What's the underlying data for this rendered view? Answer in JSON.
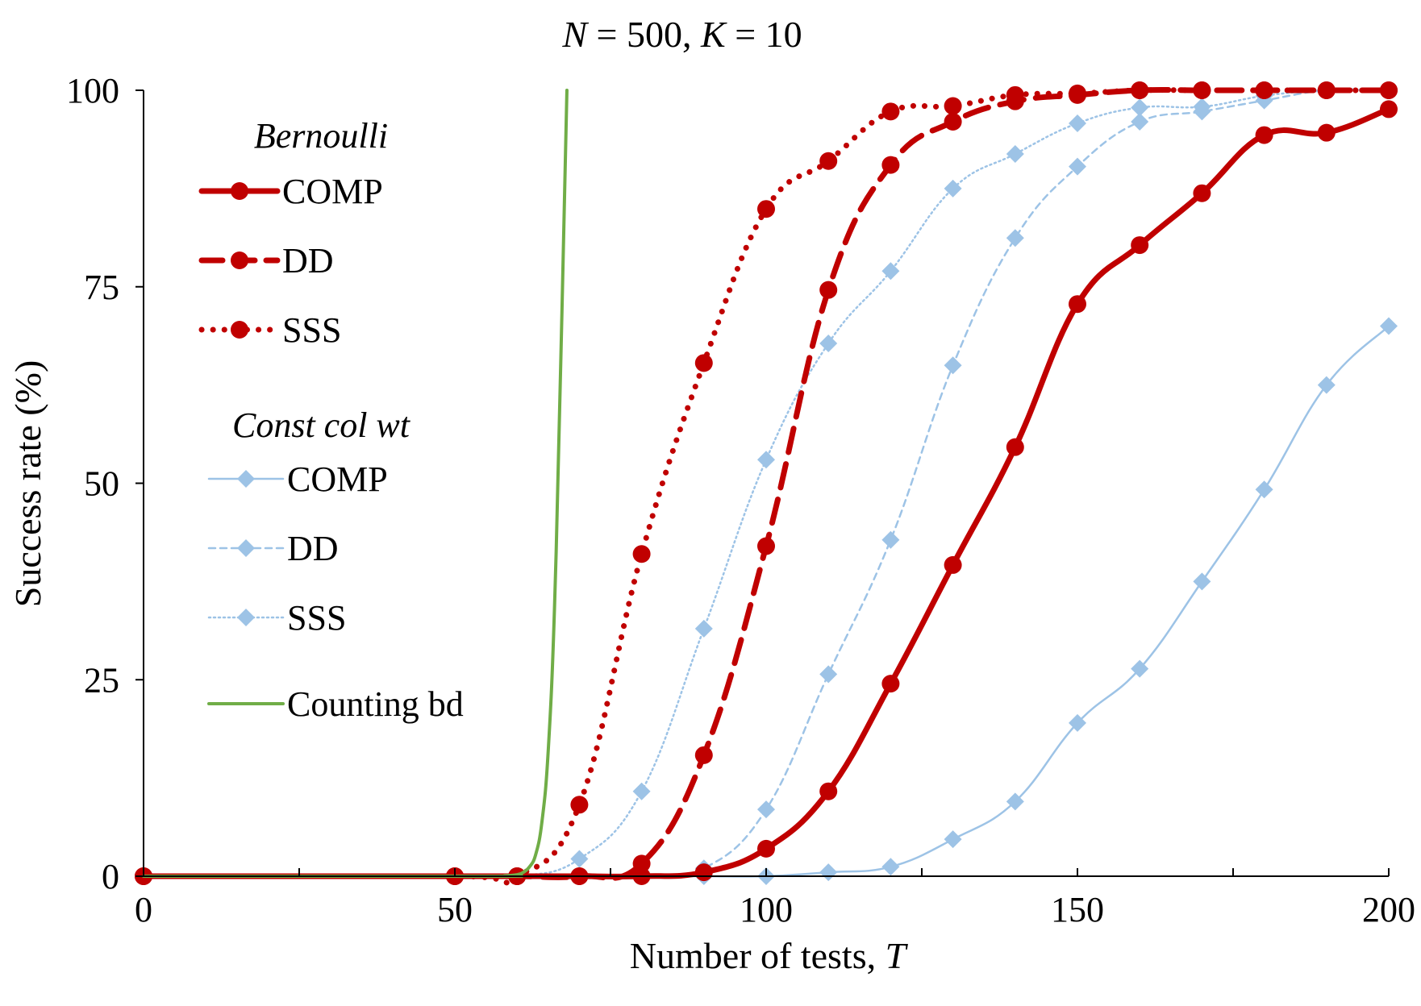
{
  "chart_data": {
    "type": "line",
    "title": {
      "n_var": "N",
      "n_val": "500",
      "k_var": "K",
      "k_val": "10"
    },
    "xlabel": {
      "text": "Number of tests, ",
      "var": "T"
    },
    "ylabel": "Success rate (%)",
    "xlim": [
      0,
      200
    ],
    "ylim": [
      0,
      100
    ],
    "x_ticks": [
      0,
      50,
      100,
      150,
      200
    ],
    "x_tick_labels": [
      "0",
      "50",
      "100",
      "150",
      "200"
    ],
    "y_ticks": [
      0,
      25,
      50,
      75,
      100
    ],
    "y_tick_labels": [
      "0",
      "25",
      "50",
      "75",
      "100"
    ],
    "x_minor_step": 25,
    "grid": false,
    "legend": {
      "placement": "top-left",
      "groups": [
        {
          "title": "Bernoulli",
          "entries": [
            "COMP",
            "DD",
            "SSS"
          ]
        },
        {
          "title": "Const col wt",
          "entries": [
            "COMP",
            "DD",
            "SSS"
          ]
        },
        {
          "title": "",
          "entries": [
            "Counting bd"
          ]
        }
      ]
    },
    "colors": {
      "bernoulli": "#c00000",
      "const_col_wt": "#9dc3e6",
      "counting_bd": "#70ad47"
    },
    "series": [
      {
        "name": "COMP",
        "group": "Bernoulli",
        "style": "solid",
        "marker": "circle",
        "x": [
          0,
          50,
          60,
          70,
          80,
          90,
          100,
          110,
          120,
          130,
          140,
          150,
          160,
          170,
          180,
          190,
          200
        ],
        "y": [
          0,
          0,
          0,
          0,
          0,
          0.5,
          3.5,
          10.8,
          24.5,
          39.6,
          54.6,
          72.8,
          80.3,
          86.9,
          94.3,
          94.6,
          97.6
        ]
      },
      {
        "name": "DD",
        "group": "Bernoulli",
        "style": "dashed",
        "marker": "circle",
        "x": [
          0,
          50,
          60,
          70,
          80,
          90,
          100,
          110,
          120,
          130,
          140,
          150,
          160,
          170,
          180,
          190,
          200
        ],
        "y": [
          0,
          0,
          0,
          0,
          1.6,
          15.4,
          42,
          74.6,
          90.5,
          96,
          98.6,
          99.4,
          100,
          100,
          100,
          100,
          100
        ]
      },
      {
        "name": "SSS",
        "group": "Bernoulli",
        "style": "dotted",
        "marker": "circle",
        "x": [
          0,
          50,
          60,
          70,
          80,
          90,
          100,
          110,
          120,
          130,
          140,
          150,
          160,
          170,
          180,
          190,
          200
        ],
        "y": [
          0,
          0,
          0,
          9.1,
          41,
          65.3,
          84.9,
          91,
          97.3,
          98,
          99.4,
          99.6,
          100,
          100,
          100,
          100,
          100
        ]
      },
      {
        "name": "COMP",
        "group": "Const col wt",
        "style": "solid",
        "marker": "diamond",
        "x": [
          0,
          50,
          60,
          70,
          80,
          90,
          100,
          110,
          120,
          130,
          140,
          150,
          160,
          170,
          180,
          190,
          200
        ],
        "y": [
          0,
          0,
          0,
          0,
          0,
          0,
          0,
          0.5,
          1.2,
          4.7,
          9.5,
          19.5,
          26.4,
          37.5,
          49.2,
          62.5,
          70
        ]
      },
      {
        "name": "DD",
        "group": "Const col wt",
        "style": "dashed",
        "marker": "diamond",
        "x": [
          0,
          50,
          60,
          70,
          80,
          90,
          100,
          110,
          120,
          130,
          140,
          150,
          160,
          170,
          180,
          190,
          200
        ],
        "y": [
          0,
          0,
          0,
          0,
          0,
          1,
          8.5,
          25.7,
          42.8,
          65,
          81.2,
          90.3,
          96,
          97.3,
          98.7,
          100,
          100
        ]
      },
      {
        "name": "SSS",
        "group": "Const col wt",
        "style": "dotted",
        "marker": "diamond",
        "x": [
          0,
          50,
          60,
          70,
          80,
          90,
          100,
          110,
          120,
          130,
          140,
          150,
          160,
          170,
          180,
          190,
          200
        ],
        "y": [
          0,
          0,
          0,
          2.2,
          10.8,
          31.5,
          53,
          67.8,
          77,
          87.5,
          91.9,
          95.8,
          97.8,
          97.9,
          99.3,
          100,
          100
        ]
      },
      {
        "name": "Counting bd",
        "group": "",
        "style": "solid",
        "marker": "none",
        "x": [
          0,
          55,
          58,
          60,
          61,
          62,
          63,
          64,
          65,
          66,
          67,
          68
        ],
        "y": [
          0,
          0,
          0.05,
          0.2,
          0.5,
          1.2,
          2.8,
          7,
          16,
          34,
          65,
          100
        ]
      }
    ]
  }
}
